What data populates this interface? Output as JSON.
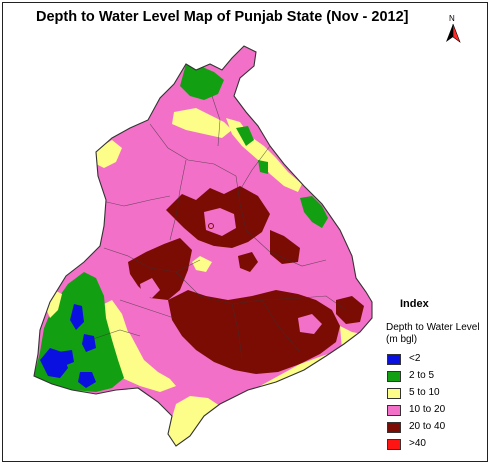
{
  "title": "Depth to Water Level Map of Punjab State (Nov - 2012]",
  "north_label": "N",
  "legend": {
    "title": "Index",
    "subtitle": "Depth to Water Level (m bgl)",
    "items": [
      {
        "label": "<2",
        "color": "#0a10e0"
      },
      {
        "label": "2 to 5",
        "color": "#12a012"
      },
      {
        "label": "5 to 10",
        "color": "#fdfd8a"
      },
      {
        "label": "10 to 20",
        "color": "#f270c8"
      },
      {
        "label": "20 to 40",
        "color": "#7a0c04"
      },
      {
        "label": ">40",
        "color": "#ff1414"
      }
    ]
  },
  "colors": {
    "deep": "#7a0c04",
    "pink": "#f270c8",
    "yellow": "#fdfd8a",
    "green": "#12a012",
    "blue": "#0a10e0",
    "red": "#ff1414",
    "boundary": "#333333"
  }
}
